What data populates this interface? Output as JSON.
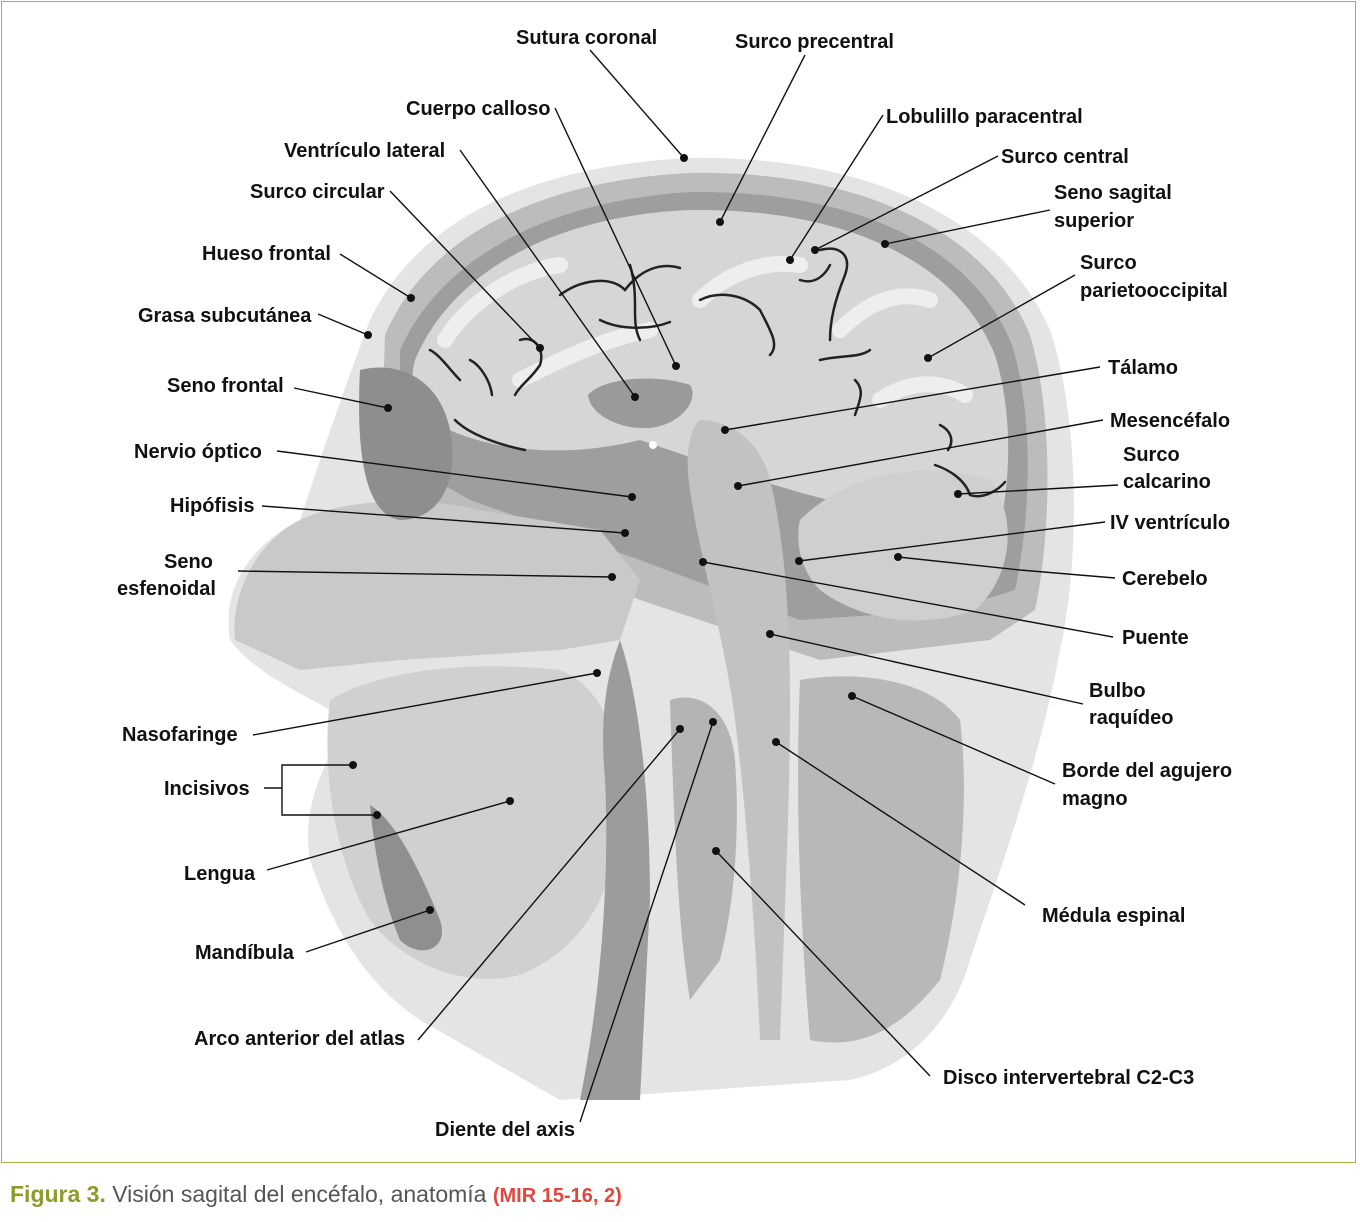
{
  "caption": {
    "figure": "Figura 3.",
    "text": " Visión sagital del encéfalo, anatomía ",
    "reference": "(MIR 15-16, 2)"
  },
  "labels": {
    "sutura_coronal": "Sutura coronal",
    "surco_precentral": "Surco precentral",
    "cuerpo_calloso": "Cuerpo calloso",
    "lobulillo_paracentral": "Lobulillo paracentral",
    "ventriculo_lateral": "Ventrículo lateral",
    "surco_central": "Surco central",
    "surco_circular": "Surco circular",
    "seno_sagital_1": "Seno sagital",
    "seno_sagital_2": "superior",
    "hueso_frontal": "Hueso frontal",
    "surco_parieto_1": "Surco",
    "surco_parieto_2": "parietooccipital",
    "grasa_subcutanea": "Grasa subcutánea",
    "seno_frontal": "Seno frontal",
    "talamo": "Tálamo",
    "mesencefalo": "Mesencéfalo",
    "nervio_optico": "Nervio óptico",
    "surco_calcarino_1": "Surco",
    "surco_calcarino_2": "calcarino",
    "hipofisis": "Hipófisis",
    "iv_ventriculo": "IV ventrículo",
    "seno_esfenoidal_1": "Seno",
    "seno_esfenoidal_2": "esfenoidal",
    "cerebelo": "Cerebelo",
    "puente": "Puente",
    "bulbo_1": "Bulbo",
    "bulbo_2": "raquídeo",
    "nasofaringe": "Nasofaringe",
    "borde_agujero_1": "Borde del agujero",
    "borde_agujero_2": "magno",
    "incisivos": "Incisivos",
    "lengua": "Lengua",
    "medula_espinal": "Médula espinal",
    "mandibula": "Mandíbula",
    "arco_atlas": "Arco anterior del atlas",
    "disco_intervertebral": "Disco intervertebral C2-C3",
    "diente_axis": "Diente del axis"
  }
}
